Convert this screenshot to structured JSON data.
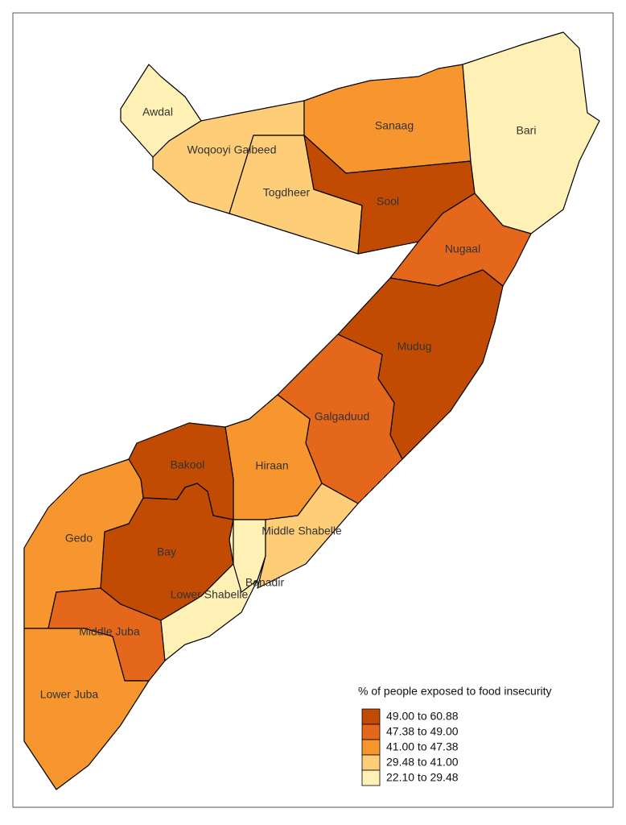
{
  "regions": [
    {
      "name": "Awdal",
      "color": "#fff1b5"
    },
    {
      "name": "Woqooyi Galbeed",
      "color": "#fdcd78"
    },
    {
      "name": "Togdheer",
      "color": "#fdcd78"
    },
    {
      "name": "Sanaag",
      "color": "#f7962e"
    },
    {
      "name": "Sool",
      "color": "#c24b04"
    },
    {
      "name": "Bari",
      "color": "#fff1b5"
    },
    {
      "name": "Nugaal",
      "color": "#e5671c"
    },
    {
      "name": "Mudug",
      "color": "#c24b04"
    },
    {
      "name": "Galgaduud",
      "color": "#e5671c"
    },
    {
      "name": "Hiraan",
      "color": "#f7962e"
    },
    {
      "name": "Bakool",
      "color": "#c24b04"
    },
    {
      "name": "Bay",
      "color": "#c24b04"
    },
    {
      "name": "Gedo",
      "color": "#f7962e"
    },
    {
      "name": "Middle Juba",
      "color": "#e5671c"
    },
    {
      "name": "Lower Juba",
      "color": "#f7962e"
    },
    {
      "name": "Lower Shabelle",
      "color": "#fff1b5"
    },
    {
      "name": "Banadir",
      "color": "#fff1b5"
    },
    {
      "name": "Middle Shabelle",
      "color": "#fdcd78"
    }
  ],
  "legend": {
    "title": "% of people exposed to food insecurity",
    "items": [
      {
        "label": "49.00 to 60.88",
        "color": "#c24b04"
      },
      {
        "label": "47.38 to 49.00",
        "color": "#e5671c"
      },
      {
        "label": "41.00 to 47.38",
        "color": "#f7962e"
      },
      {
        "label": "29.48 to 41.00",
        "color": "#fdcd78"
      },
      {
        "label": "22.10 to 29.48",
        "color": "#fff1b5"
      }
    ]
  }
}
